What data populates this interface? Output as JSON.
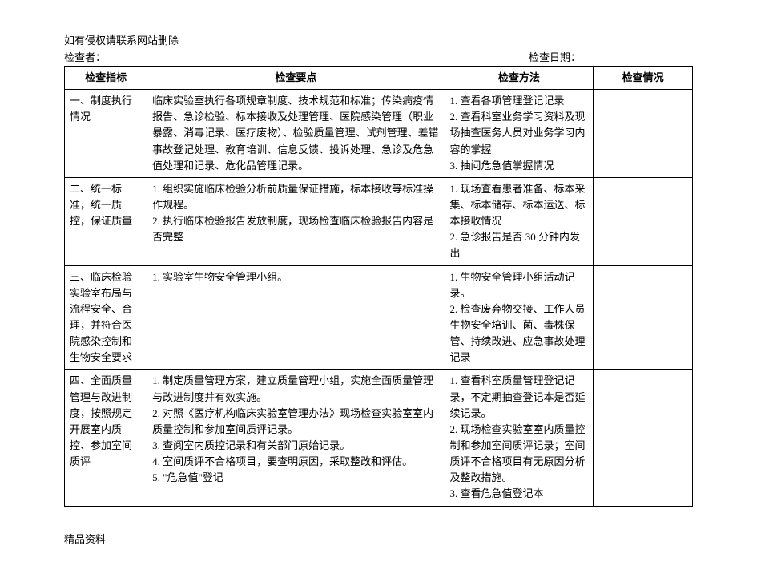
{
  "notice": "如有侵权请联系网站删除",
  "meta": {
    "inspector_label": "检查者：",
    "inspect_date_label": "检查日期："
  },
  "headers": {
    "c1": "检查指标",
    "c2": "检查要点",
    "c3": "检查方法",
    "c4": "检查情况"
  },
  "rows": [
    {
      "indicator": "一、制度执行情况",
      "points": "临床实验室执行各项规章制度、技术规范和标准；传染病疫情报告、急诊检验、标本接收及处理管理、医院感染管理（职业暴露、消毒记录、医疗废物）、检验质量管理、试剂管理、差错事故登记处理、教育培训、信息反馈、投诉处理、急诊及危急值处理和记录、危化品管理记录。",
      "method": "1. 查看各项管理登记记录\n2. 查看科室业务学习资料及现场抽查医务人员对业务学习内容的掌握\n3. 抽问危急值掌握情况",
      "status": ""
    },
    {
      "indicator": "二、统一标准，统一质控，保证质量",
      "points": "1. 组织实施临床检验分析前质量保证措施，标本接收等标准操作规程。\n2. 执行临床检验报告发放制度，现场检查临床检验报告内容是否完整",
      "method": "1. 现场查看患者准备、标本采集、标本储存、标本运送、标本接收情况\n2. 急诊报告是否 30 分钟内发出",
      "status": ""
    },
    {
      "indicator": "三、临床检验实验室布局与流程安全、合理，并符合医院感染控制和生物安全要求",
      "points": "1. 实验室生物安全管理小组。",
      "method": "1. 生物安全管理小组活动记录。\n2. 检查废弃物交接、工作人员生物安全培训、菌、毒株保管、持续改进、应急事故处理记录",
      "status": ""
    },
    {
      "indicator": "四、全面质量管理与改进制度，按照规定开展室内质控、参加室间质评",
      "points": "1. 制定质量管理方案，建立质量管理小组，实施全面质量管理与改进制度并有效实施。\n2. 对照《医疗机构临床实验室管理办法》现场检查实验室室内质量控制和参加室间质评记录。\n3. 查阅室内质控记录和有关部门原始记录。\n4. 室间质评不合格项目，要查明原因，采取整改和评估。\n5. \"危急值\"登记",
      "method": "1. 查看科室质量管理登记记录，不定期抽查登记本是否延续记录。\n2. 现场检查实验室室内质量控制和参加室间质评记录；室间质评不合格项目有无原因分析及整改措施。\n3. 查看危急值登记本",
      "status": ""
    }
  ],
  "footer": "精品资料"
}
